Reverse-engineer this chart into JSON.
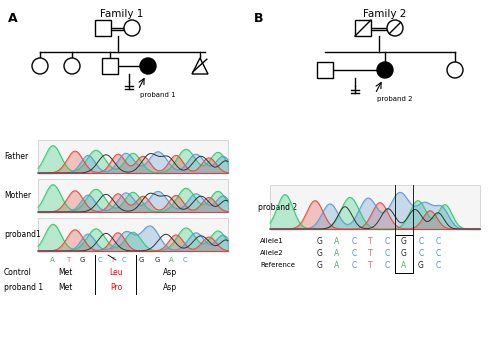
{
  "title_A": "Family 1",
  "title_B": "Family 2",
  "label_A": "A",
  "label_B": "B",
  "chromatogram_labels_left": [
    "Father",
    "Mother",
    "proband1"
  ],
  "chromatogram_label_right": "proband 2",
  "bases_proband1": [
    "A",
    "T",
    "G",
    "C",
    "T",
    "C",
    "G",
    "G",
    "A",
    "C"
  ],
  "bases_colors_proband1": [
    "#3cba54",
    "#e06666",
    "#222222",
    "#4a90d9",
    "#e06666",
    "#4a90d9",
    "#222222",
    "#222222",
    "#3cba54",
    "#4a90d9"
  ],
  "allele1_bases": [
    "G",
    "A",
    "C",
    "T",
    "C",
    "G",
    "C",
    "C"
  ],
  "allele2_bases": [
    "G",
    "A",
    "C",
    "T",
    "C",
    "G",
    "C",
    "C"
  ],
  "reference_bases": [
    "G",
    "A",
    "C",
    "T",
    "C",
    "A",
    "G",
    "C"
  ],
  "allele_colors": [
    "#222222",
    "#3cba54",
    "#4a90d9",
    "#e06666",
    "#4a90d9",
    "#222222",
    "#4a90d9",
    "#4a90d9"
  ],
  "ref_colors": [
    "#222222",
    "#3cba54",
    "#4a90d9",
    "#e06666",
    "#4a90d9",
    "#3cba54",
    "#222222",
    "#4a90d9"
  ],
  "bg_color": "#ffffff"
}
